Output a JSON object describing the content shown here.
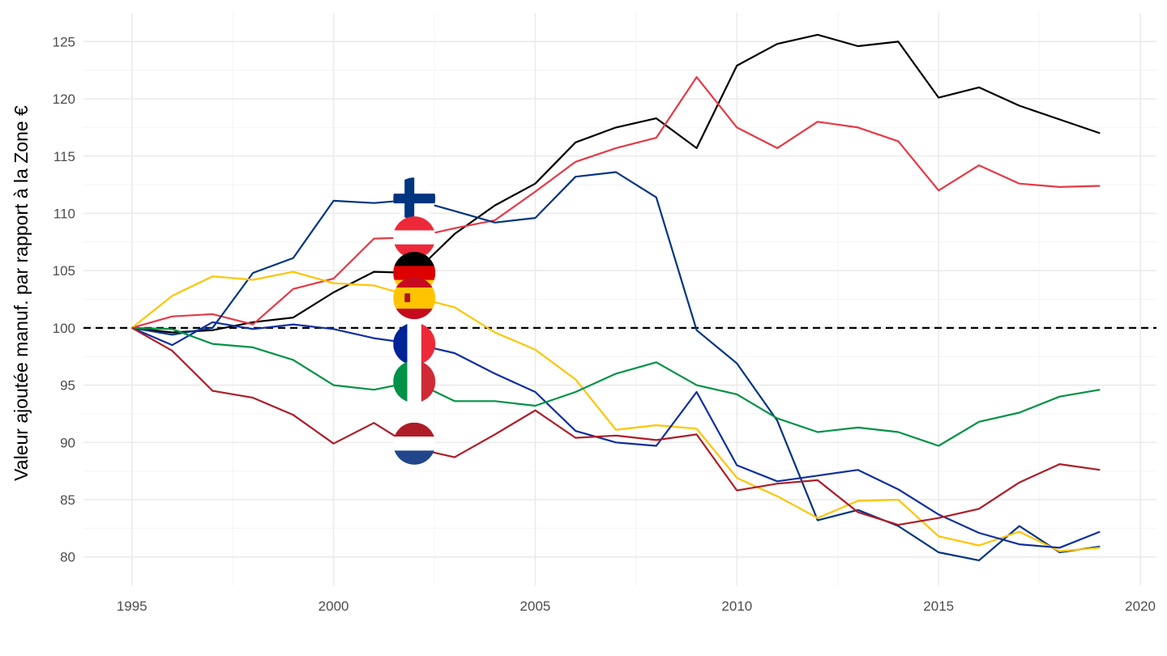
{
  "chart_data": {
    "type": "line",
    "title": "",
    "xlabel": "",
    "ylabel": "Valeur ajoutée manuf. par rapport à la Zone €",
    "xlim": [
      1993.8,
      2020.4
    ],
    "ylim": [
      77.5,
      127.5
    ],
    "x_ticks": [
      1995,
      2000,
      2005,
      2010,
      2015,
      2020
    ],
    "x_tick_labels": [
      "1995",
      "2000",
      "2005",
      "2010",
      "2015",
      "2020"
    ],
    "y_ticks": [
      80,
      85,
      90,
      95,
      100,
      105,
      110,
      115,
      120,
      125
    ],
    "y_tick_labels": [
      "80",
      "85",
      "90",
      "95",
      "100",
      "105",
      "110",
      "115",
      "120",
      "125"
    ],
    "grid": true,
    "legend": "none",
    "reference_line": {
      "y": 100,
      "style": "dashed",
      "color": "#000000"
    },
    "x": [
      1995,
      1996,
      1997,
      1998,
      1999,
      2000,
      2001,
      2002,
      2003,
      2004,
      2005,
      2006,
      2007,
      2008,
      2009,
      2010,
      2011,
      2012,
      2013,
      2014,
      2015,
      2016,
      2017,
      2018,
      2019
    ],
    "series": [
      {
        "color": "#000000",
        "flag": "germany-flag-icon",
        "values": [
          100,
          99.6,
          99.8,
          100.5,
          100.9,
          103.1,
          104.9,
          104.8,
          108.2,
          110.7,
          112.6,
          116.2,
          117.5,
          118.3,
          115.7,
          122.9,
          124.8,
          125.6,
          124.6,
          125.0,
          120.1,
          121.0,
          119.4,
          118.2,
          117.0
        ]
      },
      {
        "color": "#e63946",
        "flag": "austria-flag-icon",
        "values": [
          100,
          101.0,
          101.2,
          100.3,
          103.4,
          104.3,
          107.8,
          107.9,
          108.7,
          109.4,
          111.9,
          114.5,
          115.7,
          116.6,
          121.9,
          117.5,
          115.7,
          118.0,
          117.5,
          116.3,
          112.0,
          114.2,
          112.6,
          112.3,
          112.4
        ]
      },
      {
        "color": "#003580",
        "flag": "finland-flag-icon",
        "values": [
          100,
          99.4,
          100.0,
          104.8,
          106.1,
          111.1,
          110.9,
          111.2,
          110.2,
          109.2,
          109.6,
          113.2,
          113.6,
          111.4,
          99.8,
          96.9,
          91.9,
          83.2,
          84.1,
          82.7,
          80.4,
          79.7,
          82.7,
          80.4,
          80.9
        ]
      },
      {
        "color": "#ffc400",
        "flag": "spain-flag-icon",
        "values": [
          100,
          102.8,
          104.5,
          104.2,
          104.9,
          103.9,
          103.7,
          102.7,
          101.8,
          99.6,
          98.1,
          95.5,
          91.1,
          91.5,
          91.2,
          86.9,
          85.3,
          83.4,
          84.9,
          85.0,
          81.8,
          81.0,
          82.2,
          80.5,
          80.8
        ]
      },
      {
        "color": "#0f2fa0",
        "flag": "france-flag-icon",
        "values": [
          100,
          98.5,
          100.5,
          99.9,
          100.3,
          99.9,
          99.1,
          98.6,
          97.8,
          96.0,
          94.4,
          91.0,
          90.0,
          89.7,
          94.4,
          88.0,
          86.6,
          87.1,
          87.6,
          85.9,
          83.7,
          82.1,
          81.1,
          80.8,
          82.2
        ]
      },
      {
        "color": "#009246",
        "flag": "italy-flag-icon",
        "values": [
          100,
          99.9,
          98.6,
          98.3,
          97.2,
          95.0,
          94.6,
          95.3,
          93.6,
          93.6,
          93.2,
          94.4,
          96.0,
          97.0,
          95.0,
          94.2,
          92.1,
          90.9,
          91.3,
          90.9,
          89.7,
          91.8,
          92.6,
          94.0,
          94.6
        ]
      },
      {
        "color": "#ae1c28",
        "flag": "netherlands-flag-icon",
        "values": [
          100,
          98.0,
          94.5,
          93.9,
          92.4,
          89.9,
          91.7,
          89.5,
          88.7,
          90.7,
          92.8,
          90.4,
          90.6,
          90.2,
          90.7,
          85.8,
          86.4,
          86.7,
          83.9,
          82.8,
          83.4,
          84.2,
          86.5,
          88.1,
          87.6
        ]
      }
    ],
    "flags": [
      {
        "name": "finland-flag-icon",
        "x": 2002,
        "y": 111.3
      },
      {
        "name": "austria-flag-icon",
        "x": 2002,
        "y": 107.9
      },
      {
        "name": "germany-flag-icon",
        "x": 2002,
        "y": 104.8
      },
      {
        "name": "spain-flag-icon",
        "x": 2002,
        "y": 102.6
      },
      {
        "name": "france-flag-icon",
        "x": 2002,
        "y": 98.6
      },
      {
        "name": "italy-flag-icon",
        "x": 2002,
        "y": 95.3
      },
      {
        "name": "netherlands-flag-icon",
        "x": 2002,
        "y": 89.9
      }
    ]
  }
}
